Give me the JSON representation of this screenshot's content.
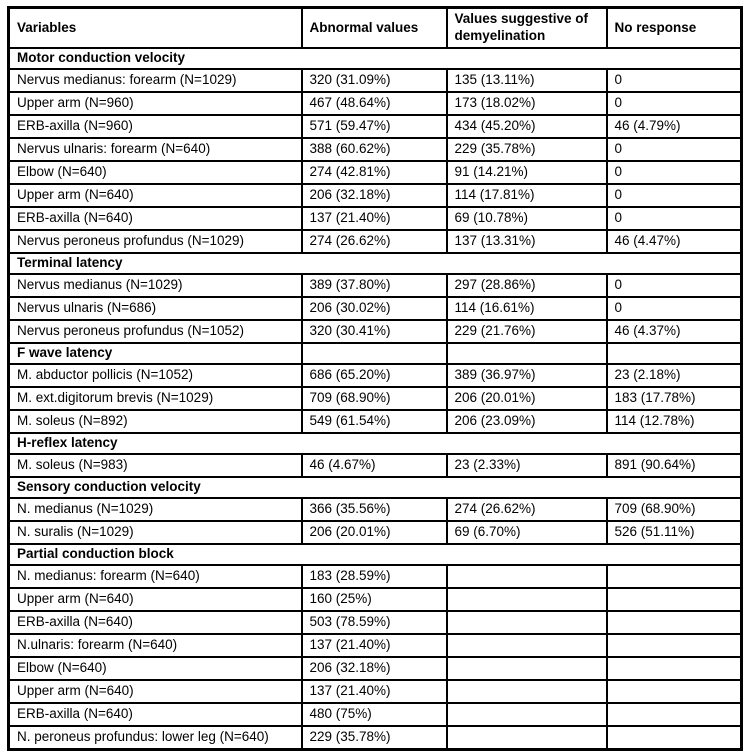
{
  "table": {
    "columns": [
      "Variables",
      "Abnormal values",
      "Values suggestive of demyelination",
      "No response"
    ],
    "rows": [
      {
        "type": "section",
        "label": "Motor conduction velocity",
        "span": true
      },
      {
        "type": "data",
        "cells": [
          "Nervus medianus: forearm (N=1029)",
          "320 (31.09%)",
          "135 (13.11%)",
          "0"
        ]
      },
      {
        "type": "data",
        "cells": [
          "Upper arm (N=960)",
          "467 (48.64%)",
          "173 (18.02%)",
          "0"
        ]
      },
      {
        "type": "data",
        "cells": [
          "ERB-axilla (N=960)",
          "571 (59.47%)",
          "434 (45.20%)",
          "46 (4.79%)"
        ]
      },
      {
        "type": "data",
        "cells": [
          "Nervus ulnaris: forearm (N=640)",
          "388 (60.62%)",
          "229 (35.78%)",
          "0"
        ]
      },
      {
        "type": "data",
        "cells": [
          "Elbow (N=640)",
          "274 (42.81%)",
          "91 (14.21%)",
          "0"
        ]
      },
      {
        "type": "data",
        "cells": [
          "Upper arm (N=640)",
          "206 (32.18%)",
          "114 (17.81%)",
          "0"
        ]
      },
      {
        "type": "data",
        "cells": [
          "ERB-axilla (N=640)",
          "137 (21.40%)",
          "69 (10.78%)",
          "0"
        ]
      },
      {
        "type": "data",
        "cells": [
          "Nervus peroneus profundus (N=1029)",
          "274 (26.62%)",
          "137 (13.31%)",
          "46 (4.47%)"
        ]
      },
      {
        "type": "section",
        "label": "Terminal latency",
        "span": true
      },
      {
        "type": "data",
        "cells": [
          "Nervus medianus (N=1029)",
          "389 (37.80%)",
          "297 (28.86%)",
          "0"
        ]
      },
      {
        "type": "data",
        "cells": [
          "Nervus ulnaris (N=686)",
          "206 (30.02%)",
          "114 (16.61%)",
          "0"
        ]
      },
      {
        "type": "data",
        "cells": [
          "Nervus peroneus profundus (N=1052)",
          "320 (30.41%)",
          "229 (21.76%)",
          "46 (4.37%)"
        ]
      },
      {
        "type": "section",
        "label": "F wave latency",
        "span": false
      },
      {
        "type": "data",
        "cells": [
          "M. abductor pollicis (N=1052)",
          "686 (65.20%)",
          "389 (36.97%)",
          "23 (2.18%)"
        ]
      },
      {
        "type": "data",
        "cells": [
          "M. ext.digitorum brevis (N=1029)",
          "709 (68.90%)",
          "206 (20.01%)",
          "183 (17.78%)"
        ]
      },
      {
        "type": "data",
        "cells": [
          "M. soleus (N=892)",
          "549 (61.54%)",
          "206 (23.09%)",
          "114 (12.78%)"
        ]
      },
      {
        "type": "section",
        "label": "H-reflex latency",
        "span": true
      },
      {
        "type": "data",
        "cells": [
          "M. soleus (N=983)",
          "46 (4.67%)",
          "23 (2.33%)",
          "891 (90.64%)"
        ]
      },
      {
        "type": "section",
        "label": "Sensory conduction velocity",
        "span": true
      },
      {
        "type": "data",
        "cells": [
          "N. medianus (N=1029)",
          "366 (35.56%)",
          "274 (26.62%)",
          "709 (68.90%)"
        ]
      },
      {
        "type": "data",
        "cells": [
          "N. suralis (N=1029)",
          "206 (20.01%)",
          "69 (6.70%)",
          "526 (51.11%)"
        ]
      },
      {
        "type": "section",
        "label": "Partial conduction block",
        "span": true
      },
      {
        "type": "data",
        "cells": [
          "N. medianus: forearm (N=640)",
          "183 (28.59%)",
          "",
          ""
        ]
      },
      {
        "type": "data",
        "cells": [
          "Upper arm (N=640)",
          "160 (25%)",
          "",
          ""
        ]
      },
      {
        "type": "data",
        "cells": [
          "ERB-axilla (N=640)",
          "503 (78.59%)",
          "",
          ""
        ]
      },
      {
        "type": "data",
        "cells": [
          "N.ulnaris: forearm (N=640)",
          "137 (21.40%)",
          "",
          ""
        ]
      },
      {
        "type": "data",
        "cells": [
          "Elbow (N=640)",
          "206 (32.18%)",
          "",
          ""
        ]
      },
      {
        "type": "data",
        "cells": [
          "Upper arm (N=640)",
          "137 (21.40%)",
          "",
          ""
        ]
      },
      {
        "type": "data",
        "cells": [
          "ERB-axilla (N=640)",
          "480 (75%)",
          "",
          ""
        ]
      },
      {
        "type": "data",
        "cells": [
          "N. peroneus profundus: lower leg (N=640)",
          "229 (35.78%)",
          "",
          ""
        ]
      }
    ]
  },
  "colors": {
    "border": "#000000",
    "text": "#000000",
    "background": "#ffffff"
  }
}
